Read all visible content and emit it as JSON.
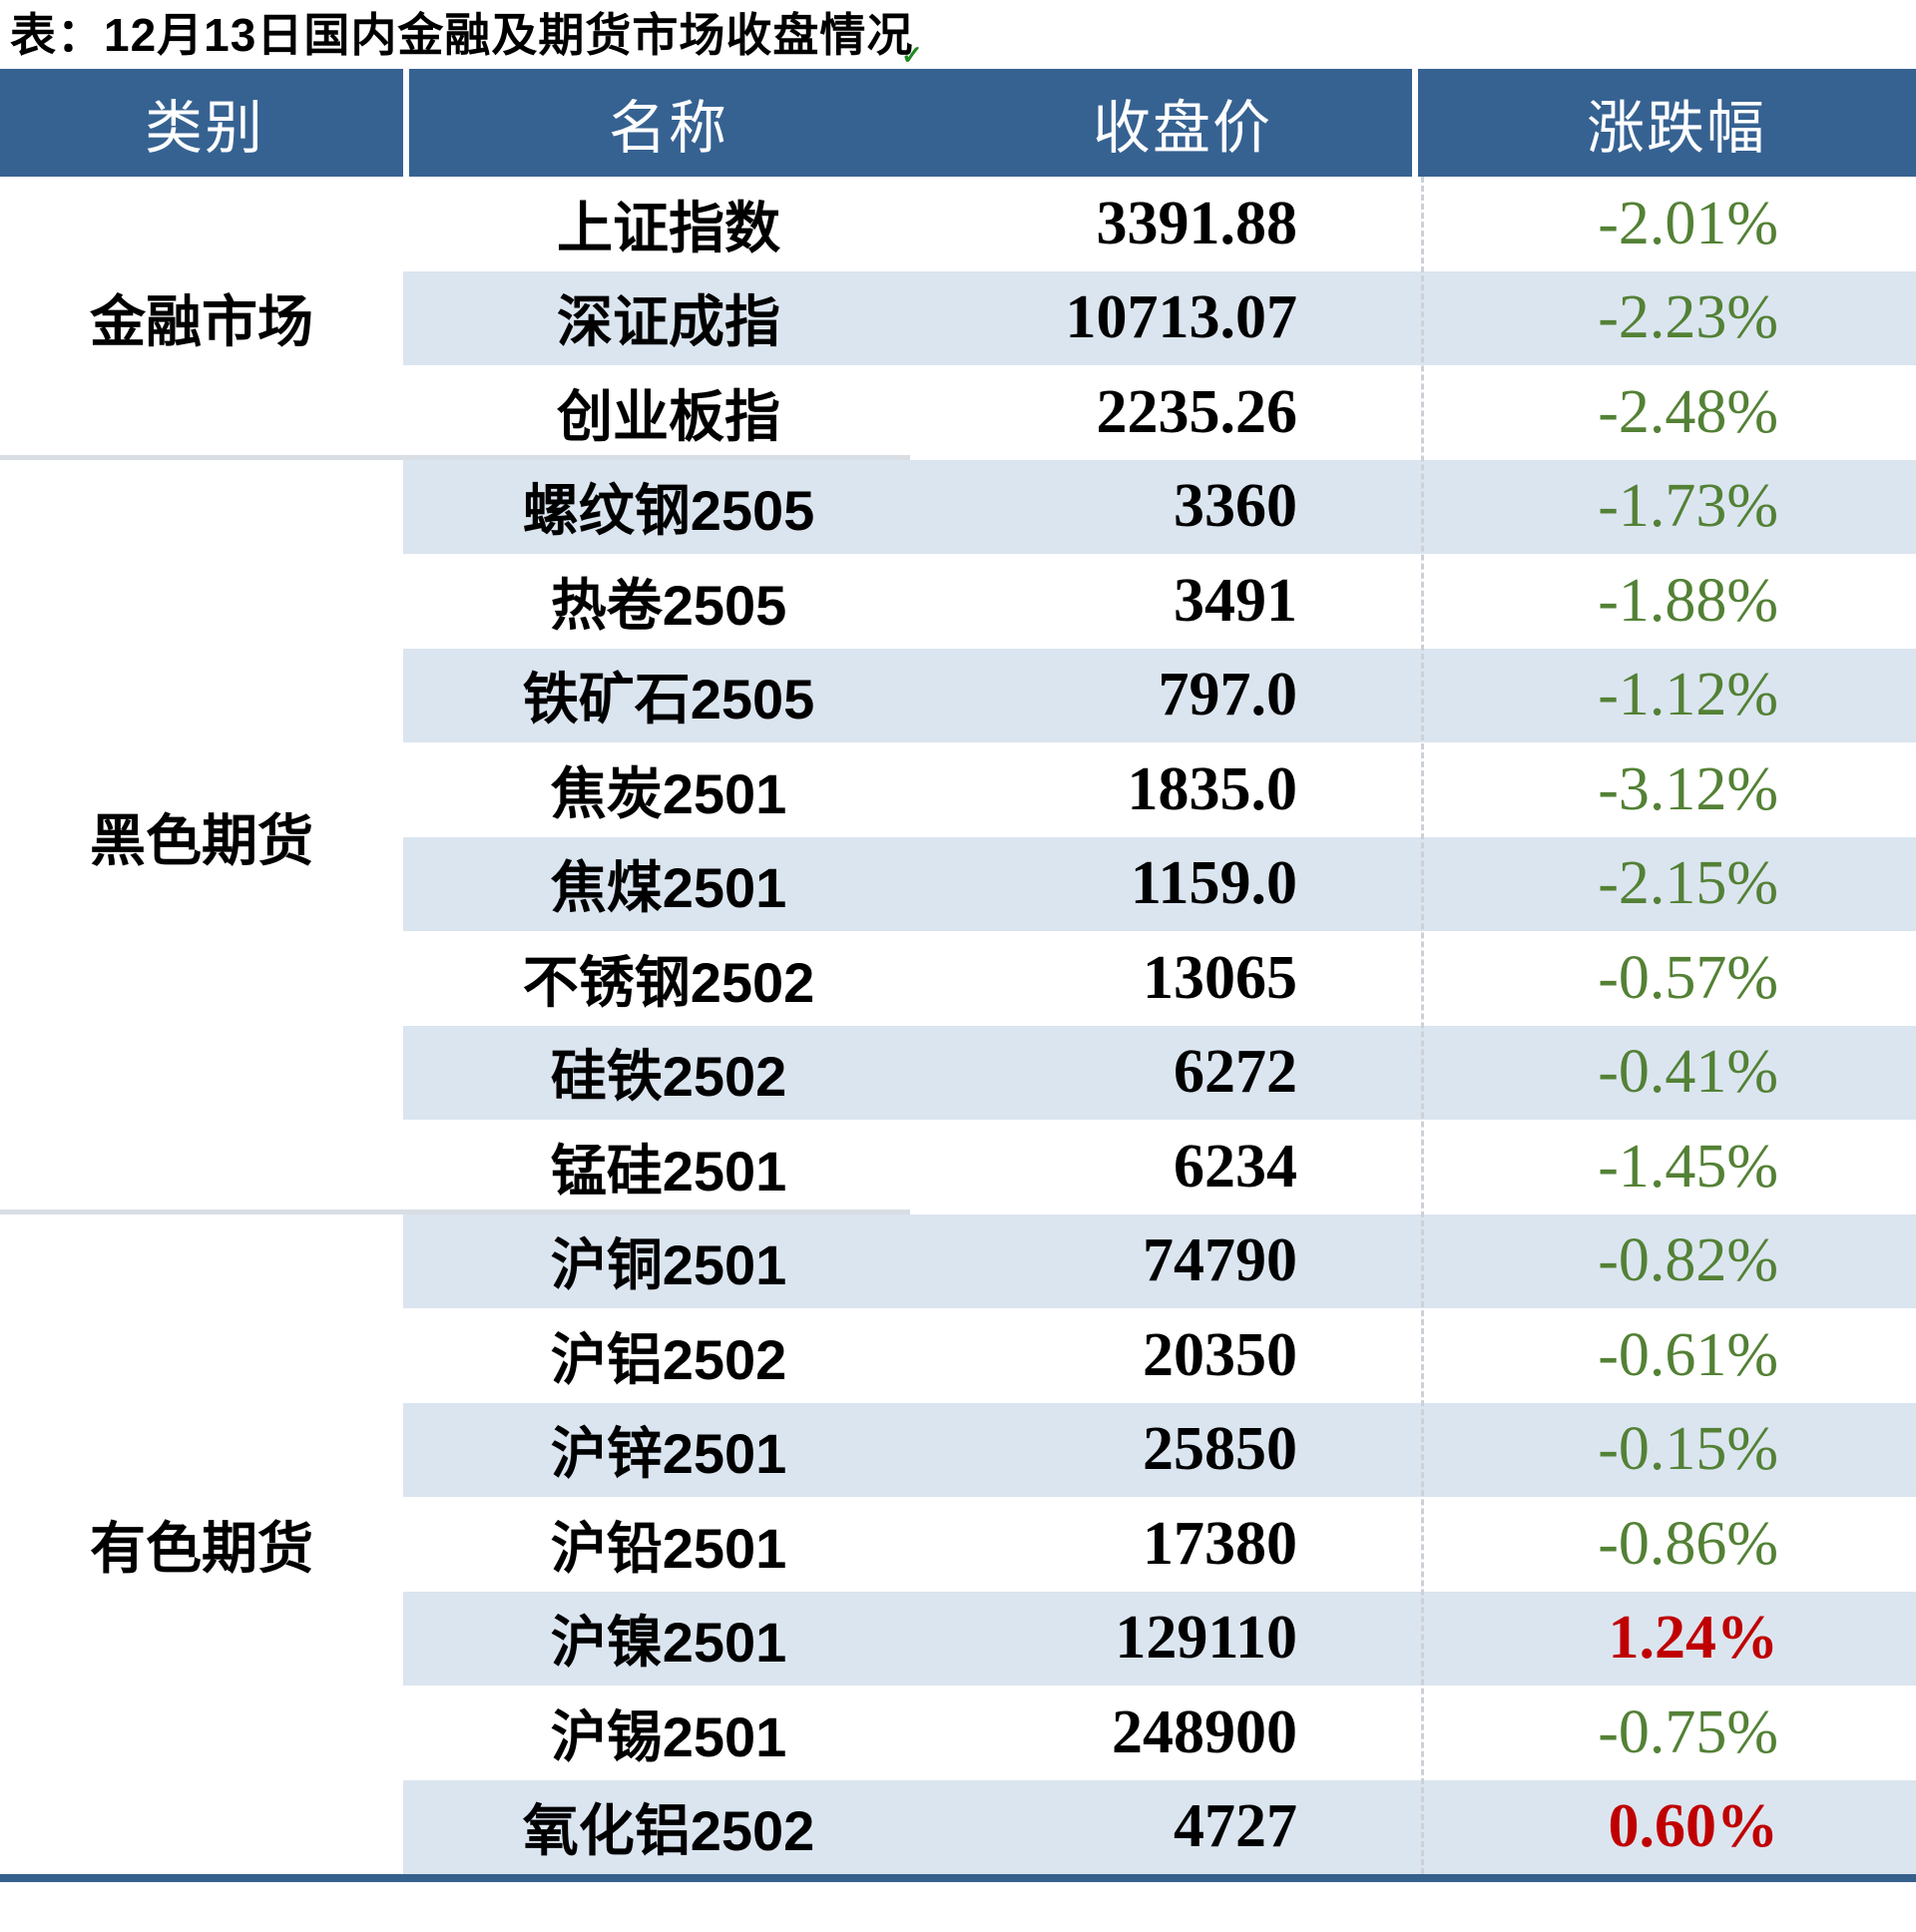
{
  "title": "表：12月13日国内金融及期货市场收盘情况",
  "artifacts": {
    "green_tick": "✓"
  },
  "colors": {
    "header_bg": "#366292",
    "stripe_bg": "#dbe5f0",
    "down_green": "#538135",
    "up_red": "#c00000",
    "separator_gray": "#d9dde4",
    "bottom_border_blue": "#35608c"
  },
  "table": {
    "headers": {
      "category": "类别",
      "name": "名称",
      "close": "收盘价",
      "change": "涨跌幅"
    },
    "groups": [
      {
        "category": "金融市场",
        "rows": [
          {
            "name": "上证指数",
            "close": "3391.88",
            "change": "-2.01%",
            "direction": "down"
          },
          {
            "name": "深证成指",
            "close": "10713.07",
            "change": "-2.23%",
            "direction": "down"
          },
          {
            "name": "创业板指",
            "close": "2235.26",
            "change": "-2.48%",
            "direction": "down"
          }
        ]
      },
      {
        "category": "黑色期货",
        "rows": [
          {
            "name": "螺纹钢2505",
            "close": "3360",
            "change": "-1.73%",
            "direction": "down"
          },
          {
            "name": "热卷2505",
            "close": "3491",
            "change": "-1.88%",
            "direction": "down"
          },
          {
            "name": "铁矿石2505",
            "close": "797.0",
            "change": "-1.12%",
            "direction": "down"
          },
          {
            "name": "焦炭2501",
            "close": "1835.0",
            "change": "-3.12%",
            "direction": "down"
          },
          {
            "name": "焦煤2501",
            "close": "1159.0",
            "change": "-2.15%",
            "direction": "down"
          },
          {
            "name": "不锈钢2502",
            "close": "13065",
            "change": "-0.57%",
            "direction": "down"
          },
          {
            "name": "硅铁2502",
            "close": "6272",
            "change": "-0.41%",
            "direction": "down"
          },
          {
            "name": "锰硅2501",
            "close": "6234",
            "change": "-1.45%",
            "direction": "down"
          }
        ]
      },
      {
        "category": "有色期货",
        "rows": [
          {
            "name": "沪铜2501",
            "close": "74790",
            "change": "-0.82%",
            "direction": "down"
          },
          {
            "name": "沪铝2502",
            "close": "20350",
            "change": "-0.61%",
            "direction": "down"
          },
          {
            "name": "沪锌2501",
            "close": "25850",
            "change": "-0.15%",
            "direction": "down"
          },
          {
            "name": "沪铅2501",
            "close": "17380",
            "change": "-0.86%",
            "direction": "down"
          },
          {
            "name": "沪镍2501",
            "close": "129110",
            "change": "1.24%",
            "direction": "up"
          },
          {
            "name": "沪锡2501",
            "close": "248900",
            "change": "-0.75%",
            "direction": "down"
          },
          {
            "name": "氧化铝2502",
            "close": "4727",
            "change": "0.60%",
            "direction": "up"
          }
        ]
      }
    ]
  },
  "chart_data": {
    "type": "table",
    "title": "表：12月13日国内金融及期货市场收盘情况",
    "columns": [
      "类别",
      "名称",
      "收盘价",
      "涨跌幅"
    ],
    "rows": [
      [
        "金融市场",
        "上证指数",
        3391.88,
        "-2.01%"
      ],
      [
        "金融市场",
        "深证成指",
        10713.07,
        "-2.23%"
      ],
      [
        "金融市场",
        "创业板指",
        2235.26,
        "-2.48%"
      ],
      [
        "黑色期货",
        "螺纹钢2505",
        3360,
        "-1.73%"
      ],
      [
        "黑色期货",
        "热卷2505",
        3491,
        "-1.88%"
      ],
      [
        "黑色期货",
        "铁矿石2505",
        797.0,
        "-1.12%"
      ],
      [
        "黑色期货",
        "焦炭2501",
        1835.0,
        "-3.12%"
      ],
      [
        "黑色期货",
        "焦煤2501",
        1159.0,
        "-2.15%"
      ],
      [
        "黑色期货",
        "不锈钢2502",
        13065,
        "-0.57%"
      ],
      [
        "黑色期货",
        "硅铁2502",
        6272,
        "-0.41%"
      ],
      [
        "黑色期货",
        "锰硅2501",
        6234,
        "-1.45%"
      ],
      [
        "有色期货",
        "沪铜2501",
        74790,
        "-0.82%"
      ],
      [
        "有色期货",
        "沪铝2502",
        20350,
        "-0.61%"
      ],
      [
        "有色期货",
        "沪锌2501",
        25850,
        "-0.15%"
      ],
      [
        "有色期货",
        "沪铅2501",
        17380,
        "-0.86%"
      ],
      [
        "有色期货",
        "沪镍2501",
        129110,
        "1.24%"
      ],
      [
        "有色期货",
        "沪锡2501",
        248900,
        "-0.75%"
      ],
      [
        "有色期货",
        "氧化铝2502",
        4727,
        "0.60%"
      ]
    ]
  }
}
